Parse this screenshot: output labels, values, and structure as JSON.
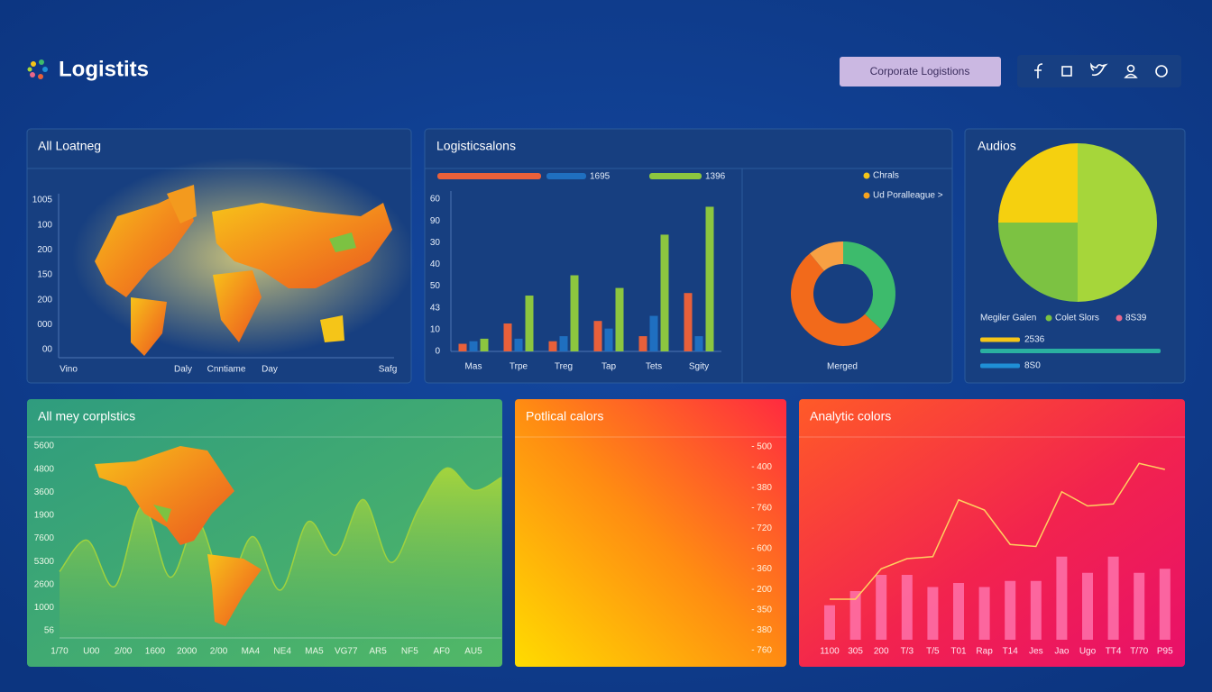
{
  "header": {
    "logo": "Logistits",
    "button": "Corporate Logistions"
  },
  "chart_data": [
    {
      "type": "map",
      "title": "All Loatneg",
      "y_labels": [
        "1005",
        "100",
        "200",
        "150",
        "200",
        "000",
        "00"
      ],
      "x_labels": [
        "Vino",
        "Daly",
        "Cnntiame",
        "Day",
        "Safg"
      ]
    },
    {
      "type": "bar",
      "title": "Logisticsalons",
      "categories": [
        "Mas",
        "Trpe",
        "Treg",
        "Tap",
        "Tets",
        "Sgity"
      ],
      "ylim": [
        0,
        60
      ],
      "y_labels": [
        "60",
        "90",
        "30",
        "40",
        "50",
        "43",
        "10",
        "0"
      ],
      "series": [
        {
          "color": "#e8603a",
          "values": [
            3,
            11,
            4,
            12,
            6,
            23
          ]
        },
        {
          "name": "1695",
          "color": "#1f6fc0",
          "values": [
            4,
            5,
            6,
            9,
            14,
            6
          ]
        },
        {
          "name": "1396",
          "color": "#8cc63f",
          "values": [
            5,
            22,
            30,
            25,
            46,
            57
          ]
        }
      ]
    },
    {
      "type": "pie",
      "donut": true,
      "values": [
        37,
        52,
        11
      ],
      "colors": [
        "#3dbb6c",
        "#f26a1b",
        "#f7a043"
      ],
      "legend": [
        {
          "label": "Chrals",
          "color": "#f5c518"
        },
        {
          "label": "Ud Poralleague >",
          "color": "#f5a21e"
        }
      ],
      "label": "Merged"
    },
    {
      "type": "pie",
      "title": "Audios",
      "values": [
        50,
        25,
        25
      ],
      "colors": [
        "#a6d63a",
        "#7cc242",
        "#f5d00f"
      ],
      "legend": [
        {
          "label": "Megiler Galen"
        },
        {
          "label": "Colet Slors",
          "color": "#7cc242"
        },
        {
          "label": "8S39",
          "color": "#e8678a"
        }
      ],
      "bars": [
        {
          "label": "2536",
          "color": "#f5c518"
        },
        {
          "label": "8S0",
          "color": "#1f8fd6"
        }
      ]
    },
    {
      "type": "area",
      "title": "All mey corplstics",
      "ylim": [
        0,
        100
      ],
      "color": "#9fd23e",
      "y_labels": [
        "5600",
        "4800",
        "3600",
        "1900",
        "7600",
        "5300",
        "2600",
        "1000",
        "56"
      ],
      "x_labels": [
        "1/70",
        "U00",
        "2/00",
        "1600",
        "2000",
        "2/00",
        "MA4",
        "NE4",
        "MA5",
        "VG77",
        "AR5",
        "NF5",
        "AF0",
        "AU5"
      ],
      "values": [
        32,
        49,
        24,
        68,
        29,
        59,
        24,
        51,
        22,
        59,
        41,
        71,
        37,
        66,
        88,
        76,
        83
      ]
    },
    {
      "type": "gradient",
      "title": "Potlical calors",
      "y_labels": [
        "- 500",
        "- 400",
        "- 380",
        "- 760",
        "- 720",
        "- 600",
        "- 360",
        "- 200",
        "- 350",
        "- 380",
        "- 760"
      ]
    },
    {
      "type": "combo",
      "title": "Analytic colors",
      "ylim": [
        0,
        100
      ],
      "categories": [
        "1100",
        "305",
        "200",
        "T/3",
        "T/5",
        "T01",
        "Rap",
        "T14",
        "Jes",
        "Jao",
        "Ugo",
        "TT4",
        "T/70",
        "P95"
      ],
      "series": [
        {
          "type": "bar",
          "color": "#ff78b0",
          "values": [
            17,
            24,
            32,
            32,
            26,
            28,
            26,
            29,
            29,
            41,
            33,
            41,
            33,
            35
          ]
        },
        {
          "type": "line",
          "color": "#ffd060",
          "values": [
            20,
            20,
            35,
            40,
            41,
            69,
            64,
            47,
            46,
            73,
            66,
            67,
            87,
            84
          ]
        }
      ]
    }
  ]
}
